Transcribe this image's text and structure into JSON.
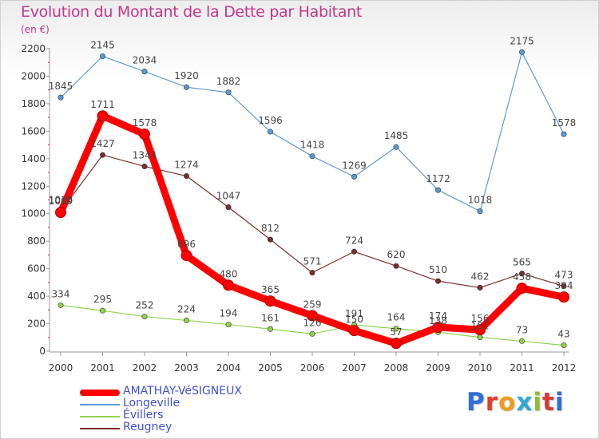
{
  "title": "Evolution du Montant de la Dette par Habitant",
  "unit_label": "(en €)",
  "logo": "Proxiti",
  "chart_data": {
    "type": "line",
    "title": "Evolution du Montant de la Dette par Habitant",
    "ylabel": "(en €)",
    "xlabel": "",
    "x": [
      "2000",
      "2001",
      "2002",
      "2003",
      "2004",
      "2005",
      "2006",
      "2007",
      "2008",
      "2009",
      "2010",
      "2011",
      "2012"
    ],
    "ylim": [
      0,
      2200
    ],
    "yticks": [
      0,
      200,
      400,
      600,
      800,
      1000,
      1200,
      1400,
      1600,
      1800,
      2000,
      2200
    ],
    "grid": false,
    "legend_position": "bottom",
    "series": [
      {
        "name": "AMATHAY-VéSIGNEUX",
        "color": "#ff0000",
        "values": [
          1009,
          1711,
          1578,
          696,
          480,
          365,
          259,
          150,
          57,
          174,
          156,
          458,
          394
        ],
        "labels": [
          "1009",
          "1711",
          "1578",
          "696",
          "480",
          "365",
          "259",
          "150",
          "57",
          "174",
          "156",
          "458",
          "394"
        ]
      },
      {
        "name": "Longeville",
        "color": "#5b9bd5",
        "values": [
          1845,
          2145,
          2034,
          1920,
          1882,
          1596,
          1418,
          1269,
          1485,
          1172,
          1018,
          2175,
          1578
        ],
        "labels": [
          "1845",
          "2145",
          "2034",
          "1920",
          "1882",
          "1596",
          "1418",
          "1269",
          "1485",
          "1172",
          "1018",
          "2175",
          "1578"
        ]
      },
      {
        "name": "Évillers",
        "color": "#8fd14f",
        "values": [
          334,
          295,
          252,
          224,
          194,
          161,
          126,
          191,
          164,
          138,
          101,
          73,
          43
        ],
        "labels": [
          "334",
          "295",
          "252",
          "224",
          "194",
          "161",
          "126",
          "191",
          "164",
          "138",
          "101",
          "73",
          "43"
        ]
      },
      {
        "name": "Reugney",
        "color": "#7b2c2c",
        "values": [
          1018,
          1427,
          1344,
          1274,
          1047,
          812,
          571,
          724,
          620,
          510,
          462,
          565,
          473
        ],
        "labels": [
          "1018",
          "1427",
          "1344",
          "1274",
          "1047",
          "812",
          "571",
          "724",
          "620",
          "510",
          "462",
          "565",
          "473"
        ]
      }
    ]
  }
}
